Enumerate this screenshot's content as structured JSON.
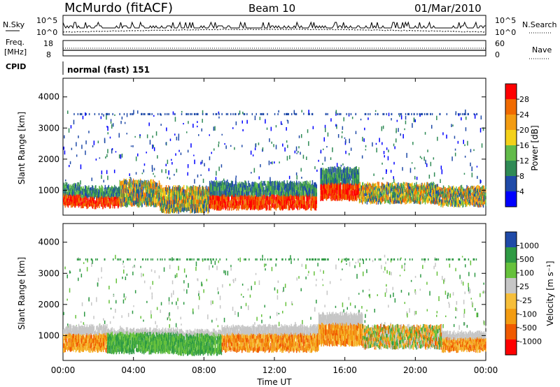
{
  "header": {
    "station": "McMurdo (fitACF)",
    "beam": "Beam 10",
    "date": "01/Mar/2010"
  },
  "summary_panel": {
    "left_label_1": "N.Sky",
    "left_label_2": "Freq.",
    "left_label_2_unit": "[MHz]",
    "left_label_3": "CPID",
    "right_label_1": "N.Search",
    "right_label_2": "Nave",
    "nsky_ticks": [
      "10^5",
      "10^0"
    ],
    "freq_ticks": [
      "18",
      "8"
    ],
    "nave_ticks": [
      "60",
      "0"
    ],
    "cpid_text": "normal (fast) 151"
  },
  "colors": {
    "power_scale": [
      "#0000ff",
      "#1f4aa8",
      "#2f8a55",
      "#62bb4a",
      "#f4d11a",
      "#f39c12",
      "#f06a00",
      "#ff0000"
    ],
    "velocity_scale": [
      "#ff0000",
      "#f05a00",
      "#f39c12",
      "#f6be3a",
      "#c6c6c6",
      "#66c13c",
      "#2f9a44",
      "#1f4aa8"
    ]
  },
  "chart_data": [
    {
      "type": "heatmap",
      "panel": "power",
      "ylabel": "Slant Range [km]",
      "xlabel": "",
      "x_ticks": [
        "00:00",
        "04:00",
        "08:00",
        "12:00",
        "16:00",
        "20:00",
        "00:00"
      ],
      "y_ticks": [
        "1000",
        "2000",
        "3000",
        "4000"
      ],
      "xlim": [
        0,
        24
      ],
      "ylim": [
        200,
        4600
      ],
      "colorbar_label": "Power [dB]",
      "colorbar_ticks": [
        "4",
        "8",
        "12",
        "16",
        "20",
        "24",
        "28"
      ],
      "bands": [
        {
          "time_start": 0.0,
          "time_end": 1.0,
          "range_low": 500,
          "range_high": 1200,
          "level": "high"
        },
        {
          "time_start": 1.0,
          "time_end": 3.2,
          "range_low": 450,
          "range_high": 1100,
          "level": "high"
        },
        {
          "time_start": 3.2,
          "time_end": 5.5,
          "range_low": 500,
          "range_high": 1300,
          "level": "mixed"
        },
        {
          "time_start": 5.5,
          "time_end": 8.3,
          "range_low": 300,
          "range_high": 1100,
          "level": "mixed"
        },
        {
          "time_start": 8.3,
          "time_end": 14.4,
          "range_low": 400,
          "range_high": 1250,
          "level": "high"
        },
        {
          "time_start": 14.6,
          "time_end": 16.8,
          "range_low": 700,
          "range_high": 1700,
          "level": "high"
        },
        {
          "time_start": 16.8,
          "time_end": 21.3,
          "range_low": 600,
          "range_high": 1200,
          "level": "mixed"
        },
        {
          "time_start": 21.3,
          "time_end": 24.0,
          "range_low": 500,
          "range_high": 1100,
          "level": "mixed"
        }
      ]
    },
    {
      "type": "heatmap",
      "panel": "velocity",
      "ylabel": "Slant Range [km]",
      "xlabel": "Time UT",
      "x_ticks": [
        "00:00",
        "04:00",
        "08:00",
        "12:00",
        "16:00",
        "20:00",
        "00:00"
      ],
      "y_ticks": [
        "1000",
        "2000",
        "3000",
        "4000"
      ],
      "xlim": [
        0,
        24
      ],
      "ylim": [
        200,
        4600
      ],
      "colorbar_label": "Velocity [m s⁻¹]",
      "colorbar_ticks": [
        "1000",
        "500",
        "100",
        "25",
        "-25",
        "-100",
        "-500",
        "-1000"
      ],
      "bands": [
        {
          "time_start": 0.0,
          "time_end": 2.5,
          "range_low": 500,
          "range_high": 1300,
          "level": "orange"
        },
        {
          "time_start": 2.5,
          "time_end": 6.5,
          "range_low": 450,
          "range_high": 1200,
          "level": "green"
        },
        {
          "time_start": 6.5,
          "time_end": 9.0,
          "range_low": 400,
          "range_high": 1150,
          "level": "green"
        },
        {
          "time_start": 9.0,
          "time_end": 14.5,
          "range_low": 500,
          "range_high": 1300,
          "level": "orange"
        },
        {
          "time_start": 14.5,
          "time_end": 17.0,
          "range_low": 700,
          "range_high": 1700,
          "level": "orange"
        },
        {
          "time_start": 17.0,
          "time_end": 21.5,
          "range_low": 600,
          "range_high": 1300,
          "level": "mixed"
        },
        {
          "time_start": 21.5,
          "time_end": 24.0,
          "range_low": 500,
          "range_high": 1100,
          "level": "orange"
        }
      ]
    }
  ]
}
